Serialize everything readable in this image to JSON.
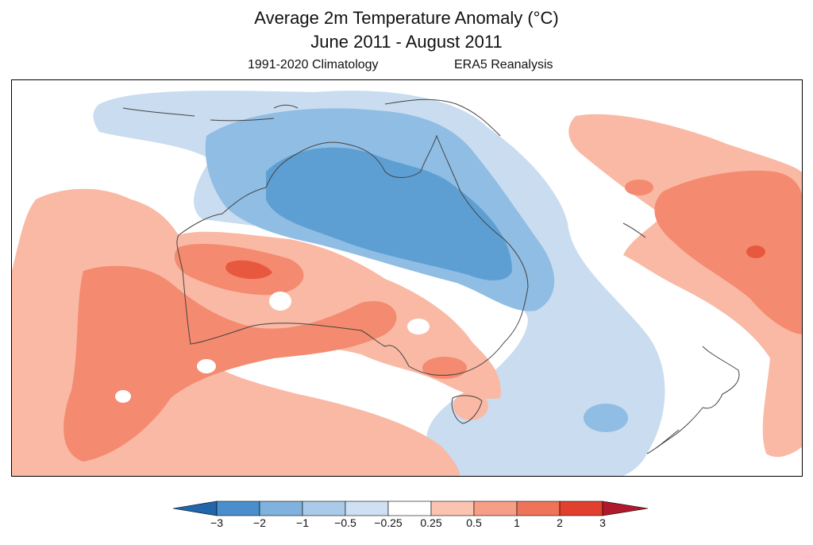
{
  "title": "Average 2m Temperature Anomaly (°C)",
  "period": "June 2011 - August 2011",
  "climatology": "1991-2020 Climatology",
  "source": "ERA5 Reanalysis",
  "legend": {
    "ticks": [
      "−3",
      "−2",
      "−1",
      "−0.5",
      "−0.25",
      "0.25",
      "0.5",
      "1",
      "2",
      "3"
    ],
    "colors": [
      "#2166ac",
      "#4a8fcb",
      "#7fb2dd",
      "#a9cbe9",
      "#cfe0f3",
      "#ffffff",
      "#fbc4b1",
      "#f79e86",
      "#ef7358",
      "#e2402f",
      "#c81d1d",
      "#b2182b"
    ]
  },
  "colors": {
    "cold_3": "#5e9fd3",
    "cold_2": "#8fbde3",
    "cold_1": "#c9dcf0",
    "warm_1": "#f9b9a4",
    "warm_2": "#f48a6f",
    "warm_3": "#e8583f",
    "coast": "#444444"
  }
}
